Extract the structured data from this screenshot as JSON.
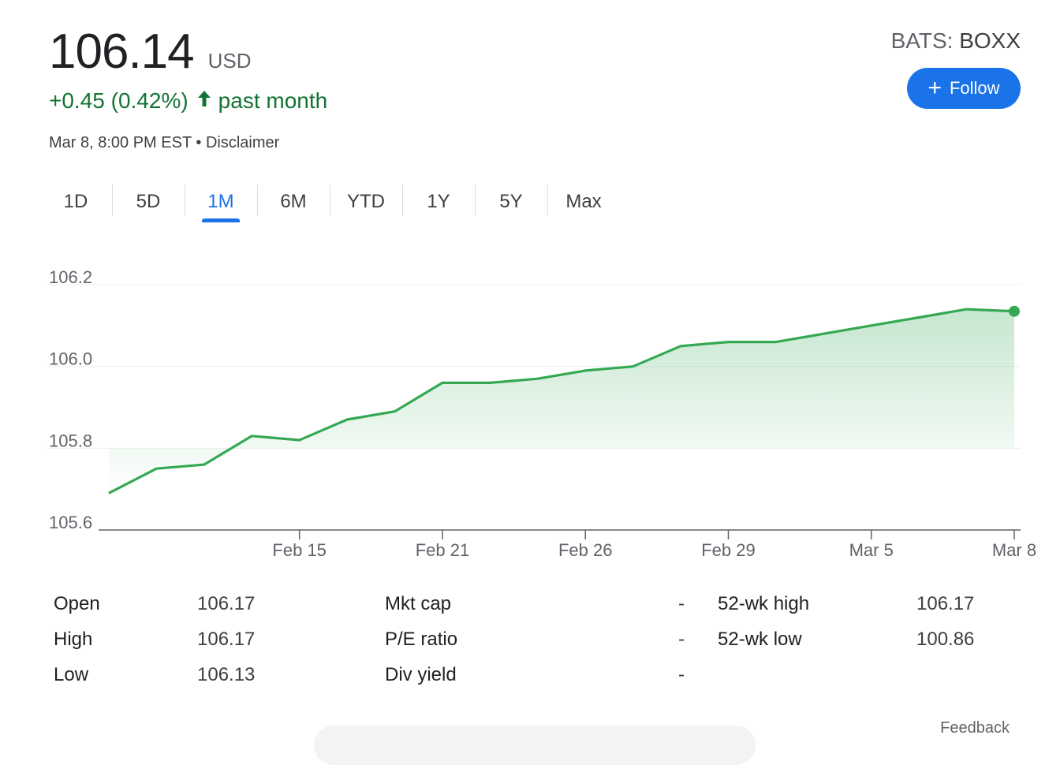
{
  "quote": {
    "price": "106.14",
    "currency": "USD",
    "change": "+0.45 (0.42%)",
    "change_period": "past month",
    "timestamp": "Mar 8, 8:00 PM EST",
    "separator": "•",
    "disclaimer": "Disclaimer",
    "exchange": "BATS:",
    "symbol": "BOXX"
  },
  "follow_button": {
    "label": "Follow"
  },
  "tabs": [
    {
      "label": "1D"
    },
    {
      "label": "5D"
    },
    {
      "label": "1M",
      "active": true
    },
    {
      "label": "6M"
    },
    {
      "label": "YTD"
    },
    {
      "label": "1Y"
    },
    {
      "label": "5Y"
    },
    {
      "label": "Max"
    }
  ],
  "chart_data": {
    "type": "area",
    "title": "",
    "xlabel": "",
    "ylabel": "",
    "x": [
      "Feb 9",
      "Feb 12",
      "Feb 13",
      "Feb 14",
      "Feb 15",
      "Feb 16",
      "Feb 20",
      "Feb 21",
      "Feb 22",
      "Feb 23",
      "Feb 26",
      "Feb 27",
      "Feb 28",
      "Feb 29",
      "Mar 1",
      "Mar 4",
      "Mar 5",
      "Mar 6",
      "Mar 7",
      "Mar 8"
    ],
    "y": [
      105.69,
      105.75,
      105.76,
      105.83,
      105.82,
      105.87,
      105.89,
      105.96,
      105.96,
      105.97,
      105.99,
      106.0,
      106.05,
      106.06,
      106.06,
      106.08,
      106.1,
      106.12,
      106.14,
      106.135
    ],
    "x_ticks": [
      "Feb 15",
      "Feb 21",
      "Feb 26",
      "Feb 29",
      "Mar 5",
      "Mar 8"
    ],
    "y_ticks": [
      "105.6",
      "105.8",
      "106.0",
      "106.2"
    ],
    "ylim": [
      105.6,
      106.2
    ],
    "line_color": "#34a853",
    "fill_color": "#34a853",
    "grid": true
  },
  "stats": [
    {
      "label": "Open",
      "value": "106.17"
    },
    {
      "label": "High",
      "value": "106.17"
    },
    {
      "label": "Low",
      "value": "106.13"
    },
    {
      "label": "Mkt cap",
      "value": "-"
    },
    {
      "label": "P/E ratio",
      "value": "-"
    },
    {
      "label": "Div yield",
      "value": "-"
    },
    {
      "label": "52-wk high",
      "value": "106.17"
    },
    {
      "label": "52-wk low",
      "value": "100.86"
    }
  ],
  "feedback": "Feedback"
}
